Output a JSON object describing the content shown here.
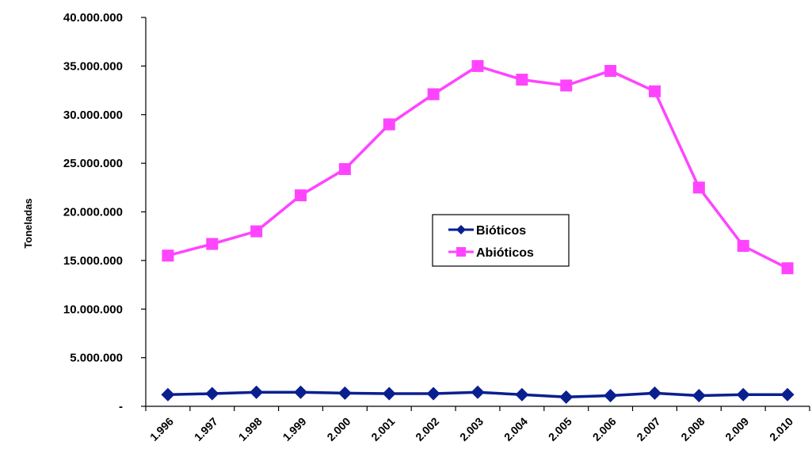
{
  "chart_data": {
    "type": "line",
    "ylabel": "Toneladas",
    "ylim": [
      0,
      40000000
    ],
    "yticks": [
      "-",
      "5.000.000",
      "10.000.000",
      "15.000.000",
      "20.000.000",
      "25.000.000",
      "30.000.000",
      "35.000.000",
      "40.000.000"
    ],
    "categories": [
      "1.996",
      "1.997",
      "1.998",
      "1.999",
      "2.000",
      "2.001",
      "2.002",
      "2.003",
      "2.004",
      "2.005",
      "2.006",
      "2.007",
      "2.008",
      "2.009",
      "2.010"
    ],
    "series": [
      {
        "name": "Bióticos",
        "color": "#0a1f8f",
        "marker": "diamond",
        "values": [
          1200000,
          1300000,
          1450000,
          1450000,
          1350000,
          1300000,
          1300000,
          1450000,
          1200000,
          950000,
          1100000,
          1350000,
          1100000,
          1200000,
          1200000
        ]
      },
      {
        "name": "Abióticos",
        "color": "#ff44ff",
        "marker": "square",
        "values": [
          15500000,
          16700000,
          18000000,
          21700000,
          24400000,
          29000000,
          32100000,
          35000000,
          33600000,
          33000000,
          34500000,
          32400000,
          22500000,
          16500000,
          14200000
        ]
      }
    ],
    "legend_position": "center"
  }
}
